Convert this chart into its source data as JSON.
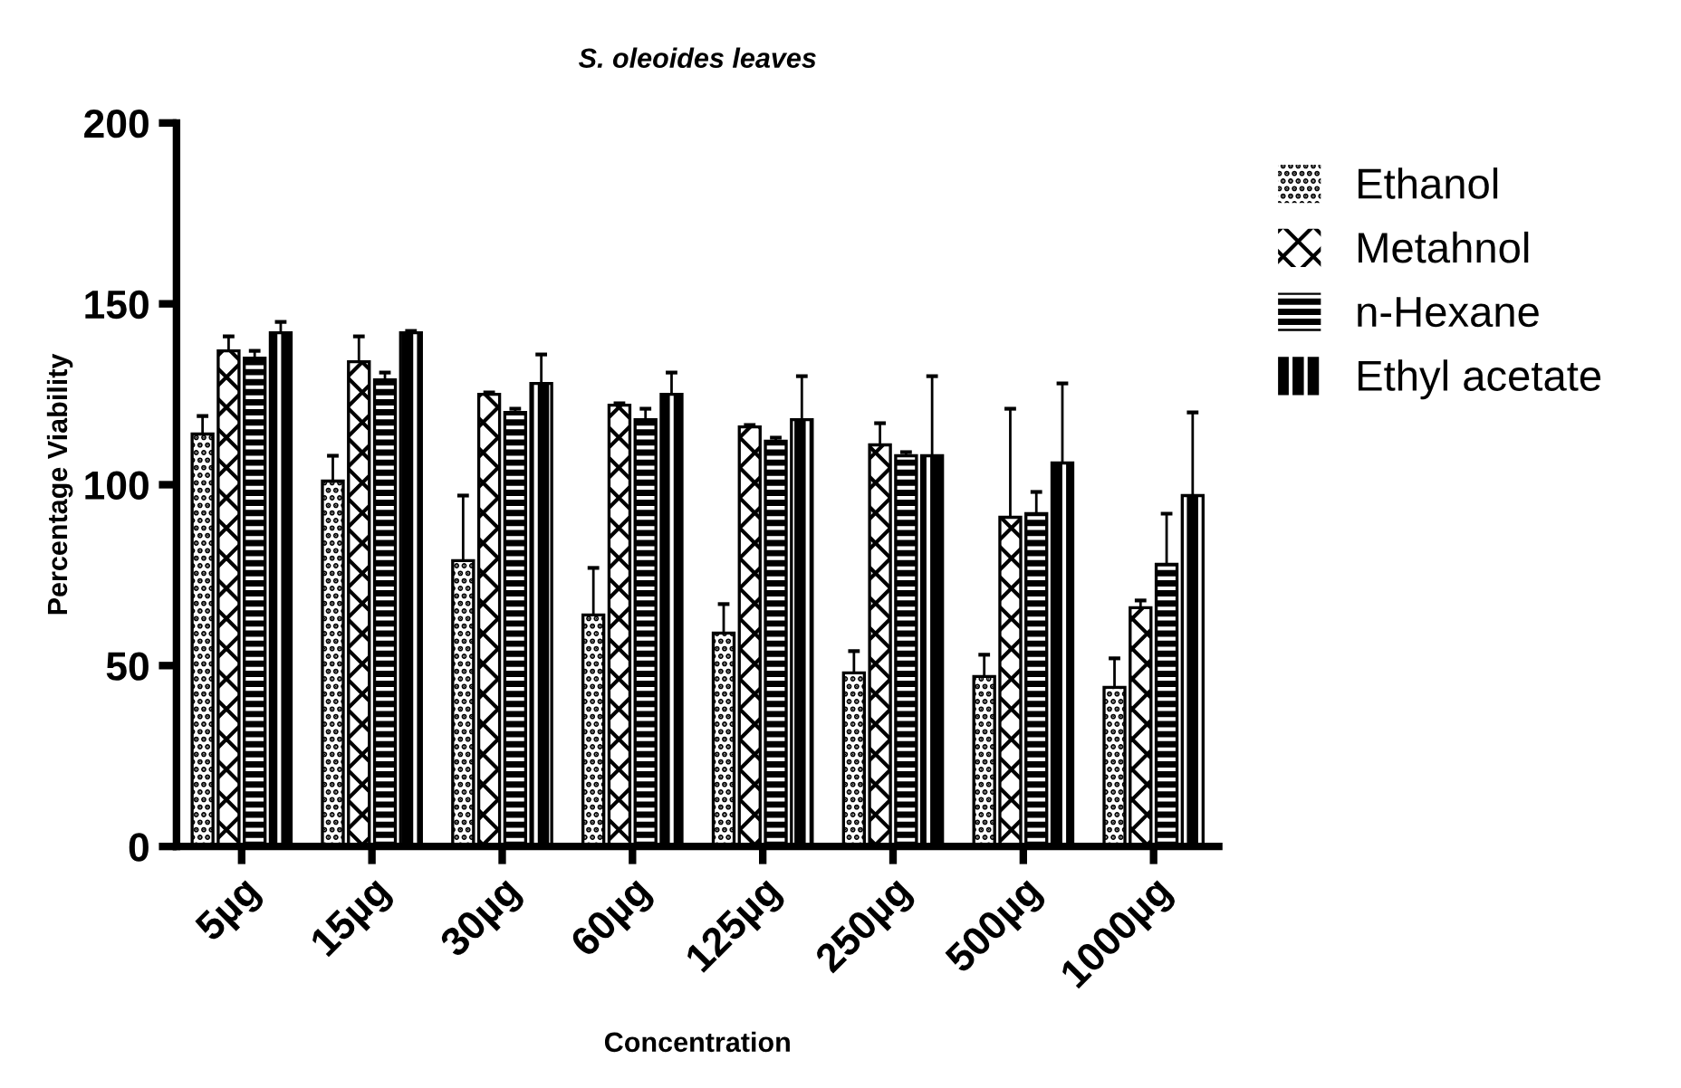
{
  "chart_data": {
    "type": "bar",
    "title": "S. oleoides leaves",
    "xlabel": "Concentration",
    "ylabel": "Percentage Viability",
    "categories": [
      "5µg",
      "15µg",
      "30µg",
      "60µg",
      "125µg",
      "250µg",
      "500µg",
      "1000µg"
    ],
    "series": [
      {
        "name": "Ethanol",
        "color": "#ffffff",
        "values": [
          114,
          101,
          79,
          64,
          59,
          48,
          47,
          44
        ],
        "errors": [
          [
            114,
            119
          ],
          [
            101,
            108
          ],
          [
            79,
            97
          ],
          [
            64,
            77
          ],
          [
            59,
            67
          ],
          [
            48,
            54
          ],
          [
            47,
            53
          ],
          [
            44,
            52
          ]
        ]
      },
      {
        "name": "Metahnol",
        "color": "#ffffff",
        "values": [
          137,
          134,
          125,
          122,
          116,
          111,
          91,
          66
        ],
        "errors": [
          [
            137,
            141
          ],
          [
            134,
            141
          ],
          [
            125,
            125.5
          ],
          [
            122,
            122.5
          ],
          [
            116,
            116.5
          ],
          [
            111,
            117
          ],
          [
            91,
            121
          ],
          [
            66,
            68
          ]
        ]
      },
      {
        "name": "n-Hexane",
        "color": "#000000",
        "values": [
          135,
          129,
          120,
          118,
          112,
          108,
          92,
          78
        ],
        "errors": [
          [
            135,
            137
          ],
          [
            129,
            131
          ],
          [
            120,
            121
          ],
          [
            118,
            121
          ],
          [
            112,
            113
          ],
          [
            108,
            109
          ],
          [
            92,
            98
          ],
          [
            78,
            92
          ]
        ]
      },
      {
        "name": "Ethyl acetate",
        "color": "#000000",
        "values": [
          142,
          142,
          128,
          125,
          118,
          108,
          106,
          97
        ],
        "errors": [
          [
            142,
            145
          ],
          [
            142,
            142.5
          ],
          [
            128,
            136
          ],
          [
            125,
            131
          ],
          [
            118,
            130
          ],
          [
            108,
            130
          ],
          [
            106,
            128
          ],
          [
            97,
            120
          ]
        ]
      }
    ],
    "ylim": [
      0,
      200
    ],
    "yticks": [
      0,
      50,
      100,
      150,
      200
    ],
    "grid": false,
    "legend": "right"
  }
}
